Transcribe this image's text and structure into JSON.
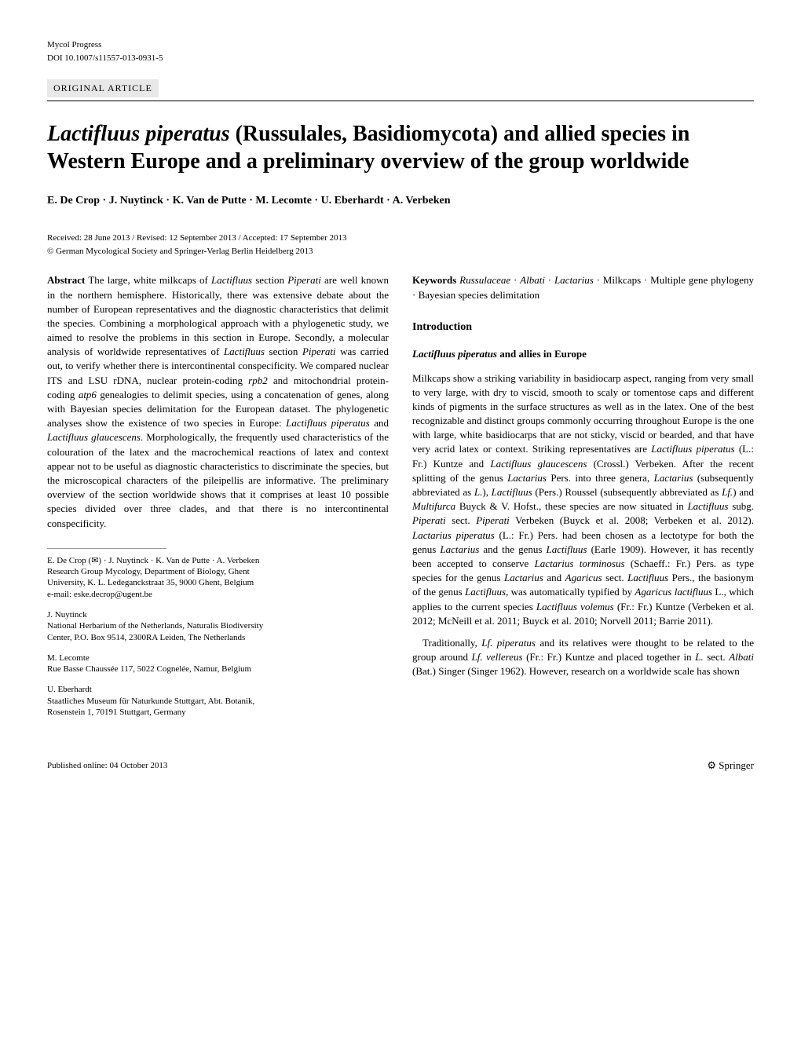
{
  "header": {
    "journal": "Mycol Progress",
    "doi": "DOI 10.1007/s11557-013-0931-5",
    "article_type": "ORIGINAL ARTICLE"
  },
  "title_parts": {
    "italic1": "Lactifluus piperatus",
    "rest": " (Russulales, Basidiomycota) and allied species in Western Europe and a preliminary overview of the group worldwide"
  },
  "authors": "E. De Crop · J. Nuytinck · K. Van de Putte · M. Lecomte · U. Eberhardt · A. Verbeken",
  "dates": "Received: 28 June 2013 / Revised: 12 September 2013 / Accepted: 17 September 2013",
  "copyright": "© German Mycological Society and Springer-Verlag Berlin Heidelberg 2013",
  "abstract": {
    "label": "Abstract",
    "p1a": " The large, white milkcaps of ",
    "p1_i1": "Lactifluus",
    "p1b": " section ",
    "p1_i2": "Piperati",
    "p1c": " are well known in the northern hemisphere. Historically, there was extensive debate about the number of European representatives and the diagnostic characteristics that delimit the species. Combining a morphological approach with a phylogenetic study, we aimed to resolve the problems in this section in Europe. Secondly, a molecular analysis of worldwide representatives of ",
    "p1_i3": "Lactifluus",
    "p1d": " section ",
    "p1_i4": "Piperati",
    "p1e": " was carried out, to verify whether there is intercontinental conspecificity. We compared nuclear ITS and LSU rDNA, nuclear protein-coding ",
    "p1_i5": "rpb2",
    "p1f": " and mitochondrial protein-coding ",
    "p1_i6": "atp6",
    "p1g": " genealogies to delimit species, using a concatenation of genes, along with Bayesian species delimitation for the European dataset. The phylogenetic analyses show the existence of two species in Europe: ",
    "p1_i7": "Lactifluus piperatus",
    "p1h": " and ",
    "p1_i8": "Lactifluus glaucescens",
    "p1i": ". Morphologically, the frequently used characteristics of the colouration of the latex and the macrochemical reactions of latex and context appear not to be useful as diagnostic characteristics to discriminate the species, but the microscopical characters of the pileipellis are informative. The preliminary overview of the section worldwide shows that it comprises at least 10 possible species divided over three clades, and that there is no intercontinental conspecificity."
  },
  "affiliations": [
    {
      "names": "E. De Crop (✉) · J. Nuytinck · K. Van de Putte · A. Verbeken",
      "line1": "Research Group Mycology, Department of Biology, Ghent",
      "line2": "University, K. L. Ledeganckstraat 35, 9000 Ghent, Belgium",
      "email": "e-mail: eske.decrop@ugent.be"
    },
    {
      "names": "J. Nuytinck",
      "line1": "National Herbarium of the Netherlands, Naturalis Biodiversity",
      "line2": "Center, P.O. Box 9514, 2300RA Leiden, The Netherlands",
      "email": ""
    },
    {
      "names": "M. Lecomte",
      "line1": "Rue Basse Chaussée 117, 5022 Cognelée, Namur, Belgium",
      "line2": "",
      "email": ""
    },
    {
      "names": "U. Eberhardt",
      "line1": "Staatliches Museum für Naturkunde Stuttgart, Abt. Botanik,",
      "line2": "Rosenstein 1, 70191 Stuttgart, Germany",
      "email": ""
    }
  ],
  "keywords": {
    "label": "Keywords",
    "k1": " Russulaceae",
    "d1": " · ",
    "k2": "Albati",
    "d2": " · ",
    "k3": "Lactarius",
    "d3": " · Milkcaps · Multiple gene phylogeny · Bayesian species delimitation"
  },
  "intro": {
    "heading": "Introduction",
    "sub1_i": "Lactifluus piperatus",
    "sub1_rest": " and allies in Europe",
    "p1a": "Milkcaps show a striking variability in basidiocarp aspect, ranging from very small to very large, with dry to viscid, smooth to scaly or tomentose caps and different kinds of pigments in the surface structures as well as in the latex. One of the best recognizable and distinct groups commonly occurring throughout Europe is the one with large, white basidiocarps that are not sticky, viscid or bearded, and that have very acrid latex or context. Striking representatives are ",
    "p1_i1": "Lactifluus piperatus",
    "p1b": " (L.: Fr.) Kuntze and ",
    "p1_i2": "Lactifluus glaucescens",
    "p1c": " (Crossl.) Verbeken. After the recent splitting of the genus ",
    "p1_i3": "Lactarius",
    "p1d": " Pers. into three genera, ",
    "p1_i4": "Lactarius",
    "p1e": " (subsequently abbreviated as ",
    "p1_i5": "L.",
    "p1f": "), ",
    "p1_i6": "Lactifluus",
    "p1g": " (Pers.) Roussel (subsequently abbreviated as ",
    "p1_i7": "Lf.",
    "p1h": ") and ",
    "p1_i8": "Multifurca",
    "p1i": " Buyck & V. Hofst., these species are now situated in ",
    "p1_i9": "Lactifluus",
    "p1j": " subg. ",
    "p1_i10": "Piperati",
    "p1k": " sect. ",
    "p1_i11": "Piperati",
    "p1l": " Verbeken (Buyck et al. 2008; Verbeken et al. 2012). ",
    "p1_i12": "Lactarius piperatus",
    "p1m": " (L.: Fr.) Pers. had been chosen as a lectotype for both the genus ",
    "p1_i13": "Lactarius",
    "p1n": " and the genus ",
    "p1_i14": "Lactifluus",
    "p1o": " (Earle 1909). However, it has recently been accepted to conserve ",
    "p1_i15": "Lactarius torminosus",
    "p1p": " (Schaeff.: Fr.) Pers. as type species for the genus ",
    "p1_i16": "Lactarius",
    "p1q": " and ",
    "p1_i17": "Agaricus",
    "p1r": " sect. ",
    "p1_i18": "Lactifluus",
    "p1s": " Pers., the basionym of the genus ",
    "p1_i19": "Lactifluus",
    "p1t": ", was automatically typified by ",
    "p1_i20": "Agaricus lactifluus",
    "p1u": " L., which applies to the current species ",
    "p1_i21": "Lactifluus volemus",
    "p1v": " (Fr.: Fr.) Kuntze (Verbeken et al. 2012; McNeill et al. 2011; Buyck et al. 2010; Norvell 2011; Barrie 2011).",
    "p2a": " Traditionally, ",
    "p2_i1": "Lf. piperatus",
    "p2b": " and its relatives were thought to be related to the group around ",
    "p2_i2": "Lf. vellereus",
    "p2c": " (Fr.: Fr.) Kuntze and placed together in ",
    "p2_i3": "L.",
    "p2d": " sect. ",
    "p2_i4": "Albati",
    "p2e": " (Bat.) Singer (Singer 1962). However, research on a worldwide scale has shown"
  },
  "footer": {
    "published": "Published online: 04 October 2013",
    "publisher": "⚙ Springer"
  }
}
